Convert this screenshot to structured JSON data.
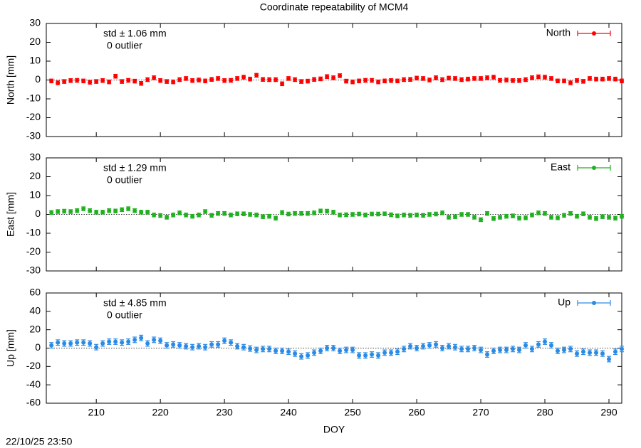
{
  "title": "Coordinate repeatability of MCM4",
  "timestamp": "22/10/25 23:50",
  "chart_data": [
    {
      "type": "scatter",
      "ylabel": "North [mm]",
      "annotations": [
        "std ± 1.06 mm",
        "0 outlier"
      ],
      "legend": "upper right",
      "x": [
        203,
        204,
        205,
        206,
        207,
        208,
        209,
        210,
        211,
        212,
        213,
        214,
        215,
        216,
        217,
        218,
        219,
        220,
        221,
        222,
        223,
        224,
        225,
        226,
        227,
        228,
        229,
        230,
        231,
        232,
        233,
        234,
        235,
        236,
        237,
        238,
        239,
        240,
        241,
        242,
        243,
        244,
        245,
        246,
        247,
        248,
        249,
        250,
        251,
        252,
        253,
        254,
        255,
        256,
        257,
        258,
        259,
        260,
        261,
        262,
        263,
        264,
        265,
        266,
        267,
        268,
        269,
        270,
        271,
        272,
        273,
        274,
        275,
        276,
        277,
        278,
        279,
        280,
        281,
        282,
        283,
        284,
        285,
        286,
        287,
        288,
        289,
        290,
        291,
        292
      ],
      "series": [
        {
          "name": "North",
          "color": "#ff0000",
          "values": [
            -0.5,
            -1.5,
            -0.8,
            -0.3,
            -0.2,
            -0.5,
            -1.2,
            -0.8,
            -0.3,
            -1,
            2,
            -0.8,
            -0.2,
            -0.6,
            -1.8,
            0.2,
            1.2,
            -0.3,
            -0.8,
            -1,
            0.2,
            0.8,
            -0.3,
            0,
            -0.5,
            0.3,
            0.8,
            -0.3,
            -0.2,
            0.8,
            1.5,
            0.5,
            2.5,
            0.3,
            0.2,
            0.2,
            -2,
            0.8,
            0.2,
            -0.8,
            -0.6,
            0.3,
            0.6,
            1.8,
            1.2,
            2.3,
            -0.6,
            -1,
            -0.5,
            -0.2,
            -0.2,
            -1,
            -0.5,
            -0.3,
            -0.5,
            0.2,
            0.3,
            1,
            0.8,
            0,
            1.2,
            0.2,
            1,
            0.8,
            0.2,
            0.5,
            0.8,
            0.8,
            1.2,
            1.5,
            -0.2,
            0,
            -0.3,
            -0.3,
            0.2,
            1.2,
            1.7,
            1.5,
            0.8,
            -0.5,
            -0.5,
            -1.5,
            -0.3,
            -0.7,
            0.8,
            0.5,
            0.5,
            0.8,
            0.5,
            -0.5
          ]
        }
      ],
      "error": 1,
      "xlim": [
        202.2,
        292
      ],
      "ylim": [
        -30,
        30
      ],
      "yticks": [
        -30,
        -20,
        -10,
        0,
        10,
        20,
        30
      ]
    },
    {
      "type": "scatter",
      "ylabel": "East [mm]",
      "annotations": [
        "std ± 1.29 mm",
        "0 outlier"
      ],
      "legend": "upper right",
      "x": [
        203,
        204,
        205,
        206,
        207,
        208,
        209,
        210,
        211,
        212,
        213,
        214,
        215,
        216,
        217,
        218,
        219,
        220,
        221,
        222,
        223,
        224,
        225,
        226,
        227,
        228,
        229,
        230,
        231,
        232,
        233,
        234,
        235,
        236,
        237,
        238,
        239,
        240,
        241,
        242,
        243,
        244,
        245,
        246,
        247,
        248,
        249,
        250,
        251,
        252,
        253,
        254,
        255,
        256,
        257,
        258,
        259,
        260,
        261,
        262,
        263,
        264,
        265,
        266,
        267,
        268,
        269,
        270,
        271,
        272,
        273,
        274,
        275,
        276,
        277,
        278,
        279,
        280,
        281,
        282,
        283,
        284,
        285,
        286,
        287,
        288,
        289,
        290,
        291,
        292
      ],
      "series": [
        {
          "name": "East",
          "color": "#1fb21f",
          "values": [
            1,
            1.5,
            1.7,
            1.5,
            2,
            3,
            2,
            1.2,
            1.2,
            2,
            1.8,
            2.5,
            3,
            2,
            1.2,
            1.2,
            -0.3,
            -0.6,
            -1.5,
            -0.3,
            0.8,
            -0.3,
            -1,
            -0.3,
            1.5,
            -0.5,
            0.5,
            0.5,
            -0.3,
            0.3,
            0.3,
            0,
            -0.3,
            -1.2,
            -1,
            -2,
            1,
            0.2,
            0.5,
            0.5,
            0.5,
            0.8,
            1.8,
            1.7,
            1.2,
            -0.3,
            -0.2,
            0,
            0.2,
            -0.3,
            0.2,
            0.2,
            0.3,
            -0.2,
            -0.8,
            -0.3,
            -0.5,
            -0.3,
            -0.5,
            0,
            0.2,
            0.8,
            -1.5,
            -1.2,
            0,
            0,
            -1.5,
            -2.8,
            0.5,
            -2.2,
            -1.5,
            -1,
            -0.8,
            -2,
            -1.8,
            -0.3,
            0.8,
            0.5,
            -1.5,
            -1.8,
            -0.5,
            0.5,
            -1,
            0.3,
            -1.5,
            -2.2,
            -1.2,
            -1.5,
            -2,
            -1
          ]
        }
      ],
      "error": 1,
      "xlim": [
        202.2,
        292
      ],
      "ylim": [
        -30,
        30
      ],
      "yticks": [
        -30,
        -20,
        -10,
        0,
        10,
        20,
        30
      ]
    },
    {
      "type": "scatter",
      "ylabel": "Up [mm]",
      "xlabel": "DOY",
      "annotations": [
        "std ± 4.85 mm",
        "0 outlier"
      ],
      "legend": "upper right",
      "x": [
        203,
        204,
        205,
        206,
        207,
        208,
        209,
        210,
        211,
        212,
        213,
        214,
        215,
        216,
        217,
        218,
        219,
        220,
        221,
        222,
        223,
        224,
        225,
        226,
        227,
        228,
        229,
        230,
        231,
        232,
        233,
        234,
        235,
        236,
        237,
        238,
        239,
        240,
        241,
        242,
        243,
        244,
        245,
        246,
        247,
        248,
        249,
        250,
        251,
        252,
        253,
        254,
        255,
        256,
        257,
        258,
        259,
        260,
        261,
        262,
        263,
        264,
        265,
        266,
        267,
        268,
        269,
        270,
        271,
        272,
        273,
        274,
        275,
        276,
        277,
        278,
        279,
        280,
        281,
        282,
        283,
        284,
        285,
        286,
        287,
        288,
        289,
        290,
        291,
        292
      ],
      "series": [
        {
          "name": "Up",
          "color": "#2a8be6",
          "values": [
            3,
            6,
            5,
            5,
            6,
            6,
            5,
            1,
            5,
            7,
            7,
            6,
            7,
            9,
            11,
            5,
            9,
            8,
            3,
            4,
            3,
            2,
            1,
            2,
            1,
            4,
            4,
            8,
            6,
            2,
            1,
            -0.5,
            -2,
            -1,
            -1,
            -3,
            -3,
            -4,
            -6,
            -9,
            -8,
            -5,
            -3,
            0,
            0,
            -3,
            -2,
            -2,
            -8,
            -8,
            -7,
            -8,
            -5,
            -5,
            -4,
            -1,
            2,
            0,
            2,
            3,
            4,
            0,
            2,
            1,
            -1,
            -1,
            0,
            -2,
            -7,
            -3,
            -2,
            -2,
            -1,
            -2,
            3,
            -1,
            4,
            7,
            3,
            -3,
            -2,
            -1,
            -6,
            -4,
            -5,
            -5,
            -6,
            -12,
            -4,
            -1
          ]
        }
      ],
      "error": 3,
      "xlim": [
        202.2,
        292
      ],
      "ylim": [
        -60,
        60
      ],
      "yticks": [
        -60,
        -40,
        -20,
        0,
        20,
        40,
        60
      ],
      "xticks": [
        210,
        220,
        230,
        240,
        250,
        260,
        270,
        280,
        290
      ]
    }
  ]
}
